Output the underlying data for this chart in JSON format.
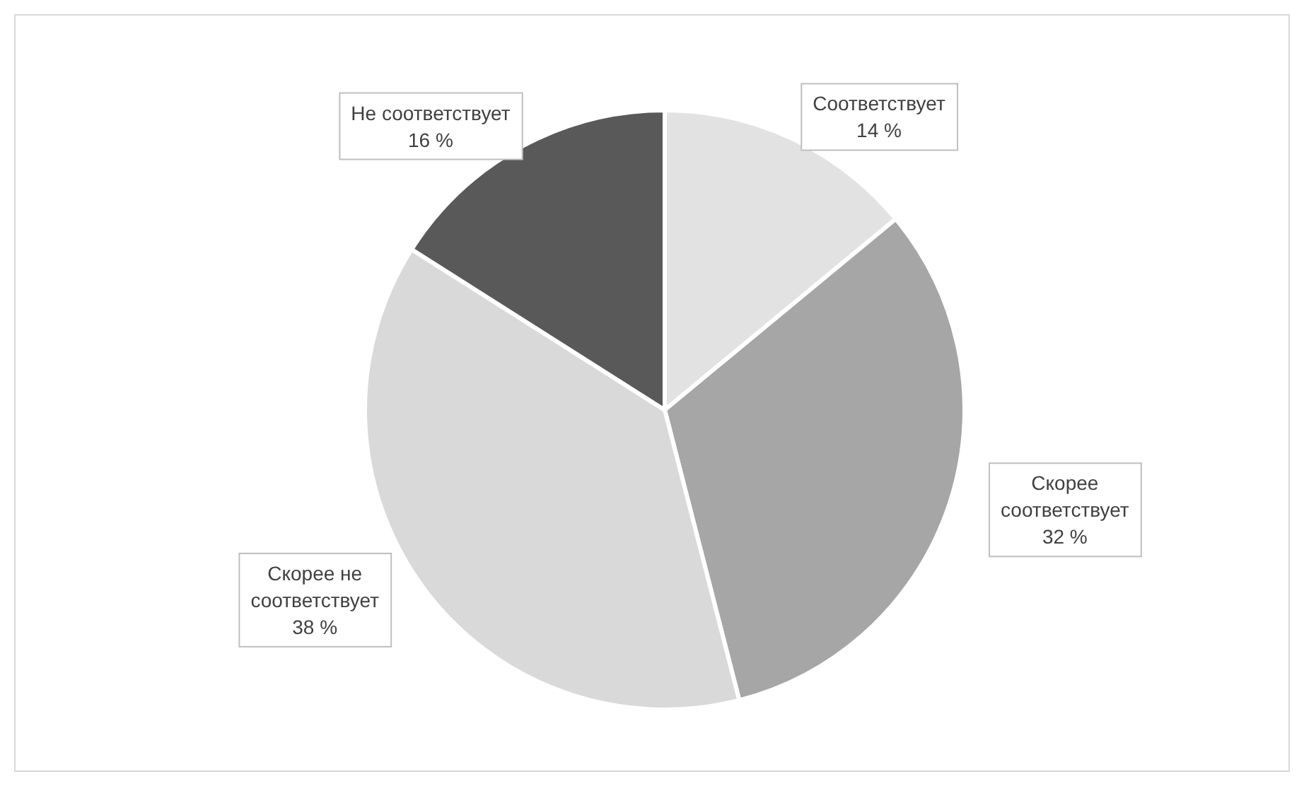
{
  "chart_data": {
    "type": "pie",
    "categories": [
      "Соответствует",
      "Скорее соответствует",
      "Скорее не соответствует",
      "Не соответствует"
    ],
    "values": [
      14,
      32,
      38,
      16
    ],
    "value_labels": [
      "14 %",
      "32 %",
      "38 %",
      "16 %"
    ],
    "colors": [
      "#e2e2e2",
      "#a6a6a6",
      "#d9d9d9",
      "#595959"
    ]
  }
}
